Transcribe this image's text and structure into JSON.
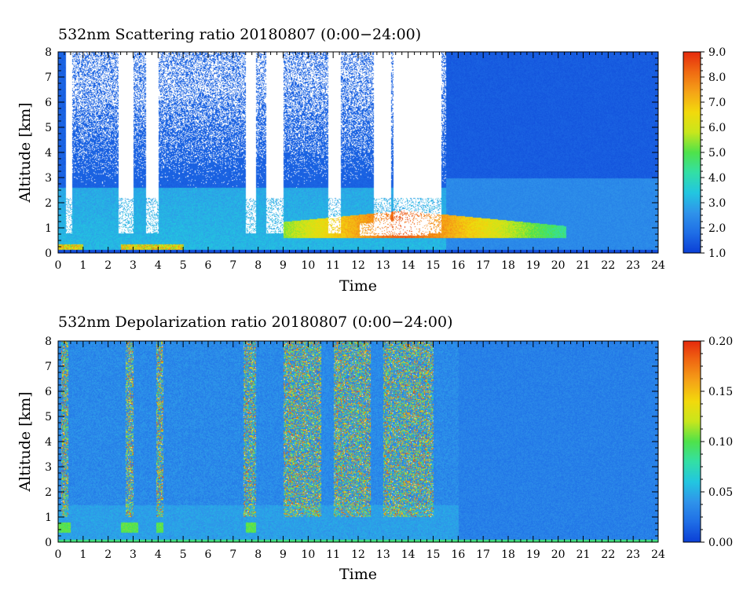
{
  "colormap": [
    "#0b3fd6",
    "#1f6ee6",
    "#2f93ea",
    "#22c6e0",
    "#33dfa5",
    "#4fe24a",
    "#c8e61c",
    "#f2d90c",
    "#f5a317",
    "#f06a12",
    "#e52a0d",
    "#ffffff"
  ],
  "chart_data": [
    {
      "type": "heatmap",
      "title": "532nm Scattering ratio  20180807 (0:00−24:00)",
      "xlabel": "Time",
      "ylabel": "Altitude [km]",
      "xlim": [
        0,
        24
      ],
      "ylim": [
        0,
        8
      ],
      "x_ticks": [
        "0",
        "1",
        "2",
        "3",
        "4",
        "5",
        "6",
        "7",
        "8",
        "9",
        "10",
        "11",
        "12",
        "13",
        "14",
        "15",
        "16",
        "17",
        "18",
        "19",
        "20",
        "21",
        "22",
        "23",
        "24"
      ],
      "y_ticks": [
        "0",
        "1",
        "2",
        "3",
        "4",
        "5",
        "6",
        "7",
        "8"
      ],
      "colorbar": {
        "min": 1.0,
        "max": 9.0,
        "ticks": [
          "1.0",
          "2.0",
          "3.0",
          "4.0",
          "5.0",
          "6.0",
          "7.0",
          "8.0",
          "9.0"
        ]
      },
      "features": {
        "background_level": 1.6,
        "boundary_layer_top_km": 2.6,
        "boundary_layer_level": 3.2,
        "aerosol_layer": {
          "x_start": 9.0,
          "x_end": 20.3,
          "altitude_km": [
            0.6,
            1.7
          ],
          "peak_level": 8.5
        },
        "cloud_gaps_hours": [
          [
            0.3,
            0.55
          ],
          [
            2.4,
            3.0
          ],
          [
            3.5,
            4.0
          ],
          [
            7.5,
            7.9
          ],
          [
            8.3,
            9.0
          ],
          [
            10.8,
            11.3
          ],
          [
            12.6,
            13.3
          ],
          [
            13.4,
            15.3
          ]
        ],
        "noise_region_hours": [
          0.5,
          15.5
        ]
      }
    },
    {
      "type": "heatmap",
      "title": "532nm Depolarization ratio  20180807 (0:00−24:00)",
      "xlabel": "Time",
      "ylabel": "Altitude [km]",
      "xlim": [
        0,
        24
      ],
      "ylim": [
        0,
        8
      ],
      "x_ticks": [
        "0",
        "1",
        "2",
        "3",
        "4",
        "5",
        "6",
        "7",
        "8",
        "9",
        "10",
        "11",
        "12",
        "13",
        "14",
        "15",
        "16",
        "17",
        "18",
        "19",
        "20",
        "21",
        "22",
        "23",
        "24"
      ],
      "y_ticks": [
        "0",
        "1",
        "2",
        "3",
        "4",
        "5",
        "6",
        "7",
        "8"
      ],
      "colorbar": {
        "min": 0.0,
        "max": 0.2,
        "ticks": [
          "0.00",
          "0.05",
          "0.10",
          "0.15",
          "0.20"
        ]
      },
      "features": {
        "background_level": 0.035,
        "boundary_layer_level": 0.045,
        "high_depolarization_hours": [
          [
            0.1,
            0.4
          ],
          [
            2.7,
            3.0
          ],
          [
            3.9,
            4.2
          ],
          [
            7.4,
            7.9
          ],
          [
            9.0,
            10.5
          ],
          [
            11.0,
            12.5
          ],
          [
            13.0,
            15.0
          ]
        ],
        "peak_level": 0.2
      }
    }
  ]
}
